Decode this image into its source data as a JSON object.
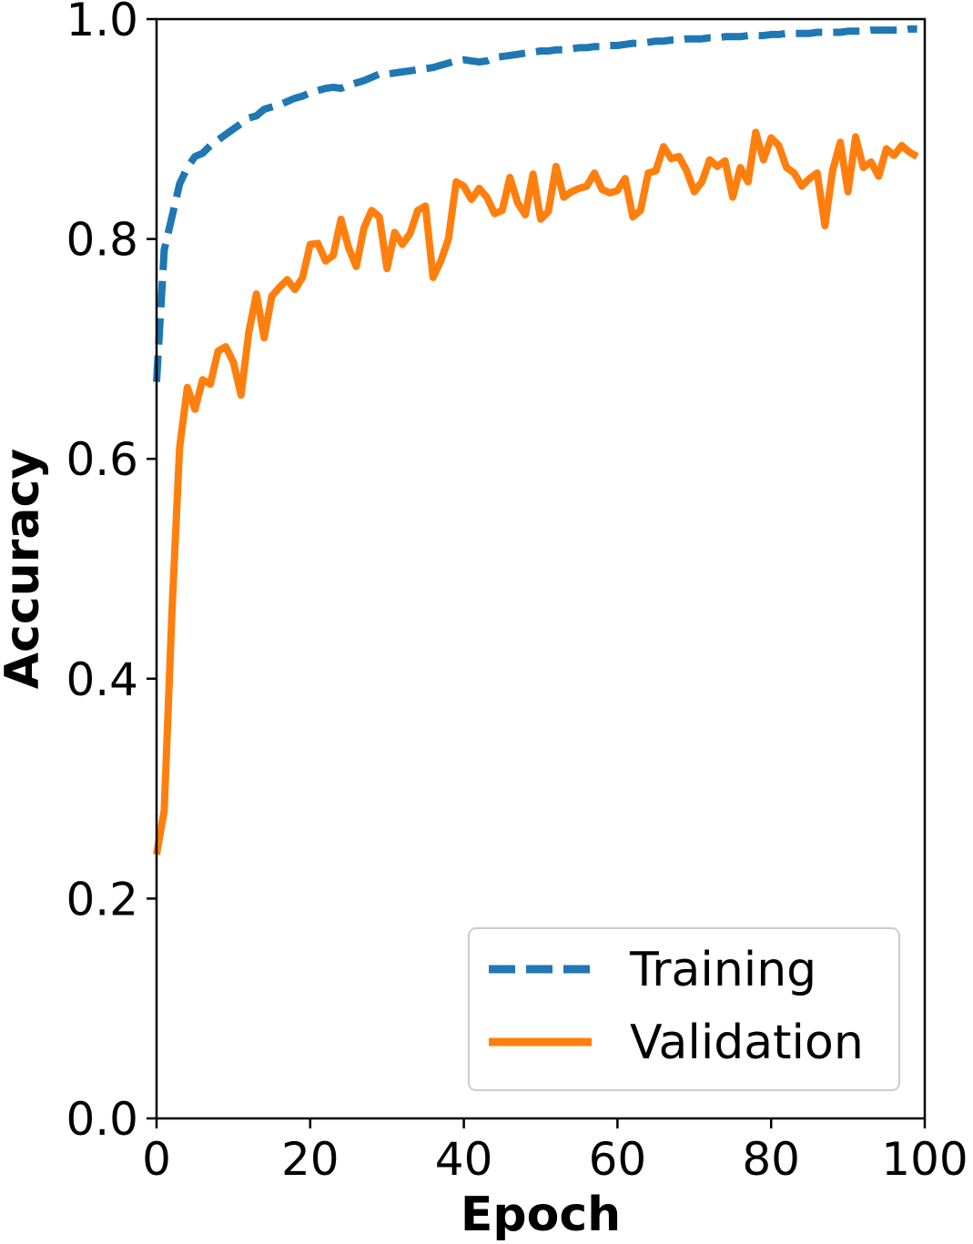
{
  "chart_data": {
    "type": "line",
    "title": "",
    "xlabel": "Epoch",
    "ylabel": "Accuracy",
    "xlim": [
      0,
      100
    ],
    "ylim": [
      0.0,
      1.0
    ],
    "xticks": [
      "0",
      "20",
      "40",
      "60",
      "80",
      "100"
    ],
    "yticks": [
      "0.0",
      "0.2",
      "0.4",
      "0.6",
      "0.8",
      "1.0"
    ],
    "grid": false,
    "legend_position": "lower-right",
    "series": [
      {
        "name": "Training",
        "color": "#1f77b4",
        "style": "dashed",
        "x": [
          0,
          1,
          2,
          3,
          4,
          5,
          6,
          7,
          8,
          9,
          10,
          11,
          12,
          13,
          14,
          15,
          16,
          17,
          18,
          19,
          20,
          21,
          22,
          23,
          24,
          25,
          26,
          27,
          28,
          29,
          30,
          31,
          32,
          33,
          34,
          35,
          36,
          37,
          38,
          39,
          40,
          41,
          42,
          43,
          44,
          45,
          46,
          47,
          48,
          49,
          50,
          51,
          52,
          53,
          54,
          55,
          56,
          57,
          58,
          59,
          60,
          61,
          62,
          63,
          64,
          65,
          66,
          67,
          68,
          69,
          70,
          71,
          72,
          73,
          74,
          75,
          76,
          77,
          78,
          79,
          80,
          81,
          82,
          83,
          84,
          85,
          86,
          87,
          88,
          89,
          90,
          91,
          92,
          93,
          94,
          95,
          96,
          97,
          98,
          99
        ],
        "y": [
          0.67,
          0.79,
          0.82,
          0.85,
          0.865,
          0.875,
          0.878,
          0.885,
          0.89,
          0.895,
          0.9,
          0.905,
          0.91,
          0.912,
          0.918,
          0.92,
          0.922,
          0.925,
          0.928,
          0.93,
          0.933,
          0.935,
          0.937,
          0.938,
          0.937,
          0.94,
          0.942,
          0.944,
          0.947,
          0.95,
          0.95,
          0.951,
          0.952,
          0.953,
          0.954,
          0.955,
          0.956,
          0.958,
          0.96,
          0.962,
          0.963,
          0.962,
          0.961,
          0.962,
          0.965,
          0.966,
          0.967,
          0.968,
          0.969,
          0.97,
          0.971,
          0.971,
          0.972,
          0.972,
          0.973,
          0.974,
          0.974,
          0.975,
          0.975,
          0.976,
          0.976,
          0.977,
          0.978,
          0.978,
          0.979,
          0.98,
          0.98,
          0.981,
          0.981,
          0.982,
          0.982,
          0.982,
          0.983,
          0.983,
          0.984,
          0.984,
          0.984,
          0.985,
          0.985,
          0.985,
          0.986,
          0.986,
          0.987,
          0.987,
          0.987,
          0.987,
          0.988,
          0.988,
          0.988,
          0.988,
          0.989,
          0.989,
          0.989,
          0.99,
          0.99,
          0.99,
          0.99,
          0.99,
          0.991,
          0.991
        ]
      },
      {
        "name": "Validation",
        "color": "#ff7f0e",
        "style": "solid",
        "x": [
          0,
          1,
          2,
          3,
          4,
          5,
          6,
          7,
          8,
          9,
          10,
          11,
          12,
          13,
          14,
          15,
          16,
          17,
          18,
          19,
          20,
          21,
          22,
          23,
          24,
          25,
          26,
          27,
          28,
          29,
          30,
          31,
          32,
          33,
          34,
          35,
          36,
          37,
          38,
          39,
          40,
          41,
          42,
          43,
          44,
          45,
          46,
          47,
          48,
          49,
          50,
          51,
          52,
          53,
          54,
          55,
          56,
          57,
          58,
          59,
          60,
          61,
          62,
          63,
          64,
          65,
          66,
          67,
          68,
          69,
          70,
          71,
          72,
          73,
          74,
          75,
          76,
          77,
          78,
          79,
          80,
          81,
          82,
          83,
          84,
          85,
          86,
          87,
          88,
          89,
          90,
          91,
          92,
          93,
          94,
          95,
          96,
          97,
          98,
          99
        ],
        "y": [
          0.24,
          0.28,
          0.46,
          0.61,
          0.665,
          0.645,
          0.672,
          0.668,
          0.698,
          0.702,
          0.688,
          0.658,
          0.715,
          0.75,
          0.71,
          0.748,
          0.756,
          0.763,
          0.754,
          0.765,
          0.795,
          0.796,
          0.78,
          0.785,
          0.818,
          0.792,
          0.775,
          0.81,
          0.826,
          0.82,
          0.773,
          0.806,
          0.795,
          0.805,
          0.826,
          0.83,
          0.765,
          0.78,
          0.8,
          0.852,
          0.848,
          0.836,
          0.846,
          0.838,
          0.823,
          0.826,
          0.856,
          0.833,
          0.822,
          0.859,
          0.818,
          0.825,
          0.866,
          0.838,
          0.843,
          0.846,
          0.848,
          0.86,
          0.845,
          0.842,
          0.844,
          0.855,
          0.82,
          0.826,
          0.86,
          0.862,
          0.884,
          0.873,
          0.875,
          0.862,
          0.843,
          0.852,
          0.872,
          0.866,
          0.871,
          0.838,
          0.865,
          0.852,
          0.897,
          0.872,
          0.892,
          0.885,
          0.865,
          0.86,
          0.848,
          0.855,
          0.86,
          0.812,
          0.862,
          0.888,
          0.843,
          0.893,
          0.865,
          0.87,
          0.857,
          0.882,
          0.876,
          0.885,
          0.879,
          0.875
        ]
      }
    ]
  }
}
